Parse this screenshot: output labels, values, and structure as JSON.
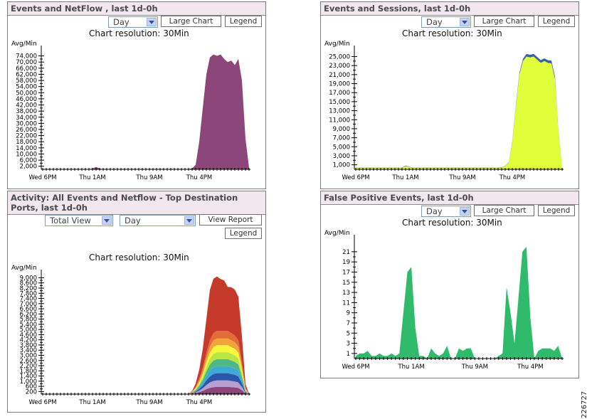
{
  "panels": {
    "netflow": {
      "title": "Events and NetFlow , last 1d-0h",
      "period_select": "Day",
      "large_chart_button": "Large Chart",
      "legend_button": "Legend",
      "resolution": "Chart resolution: 30Min",
      "unit": "Avg/Min"
    },
    "sessions": {
      "title": "Events and Sessions, last 1d-0h",
      "period_select": "Day",
      "large_chart_button": "Large Chart",
      "legend_button": "Legend",
      "resolution": "Chart resolution: 30Min",
      "unit": "Avg/Min"
    },
    "ports": {
      "title_line1": "Activity: All Events and Netflow - Top Destination",
      "title_line2": "Ports, last 1d-0h",
      "view_select": "Total View",
      "period_select": "Day",
      "view_report_button": "View Report",
      "legend_button": "Legend",
      "resolution": "Chart resolution: 30Min",
      "unit": "Avg/Min"
    },
    "false_positive": {
      "title": "False Positive Events, last 1d-0h",
      "period_select": "Day",
      "large_chart_button": "Large Chart",
      "legend_button": "Legend",
      "resolution": "Chart resolution: 30Min",
      "unit": "Avg/Min"
    }
  },
  "figure_id": "226727",
  "chart_data": [
    {
      "id": "netflow",
      "type": "area",
      "ylabel": "Avg/Min",
      "ylim": [
        0,
        78000
      ],
      "yticks": [
        2000,
        6000,
        10000,
        14000,
        18000,
        22000,
        26000,
        30000,
        34000,
        38000,
        42000,
        46000,
        50000,
        54000,
        58000,
        62000,
        66000,
        70000,
        74000
      ],
      "ytick_labels": [
        "2,000",
        "6,000",
        "10,000",
        "14,000",
        "18,000",
        "22,000",
        "26,000",
        "30,000",
        "34,000",
        "38,000",
        "42,000",
        "46,000",
        "50,000",
        "54,000",
        "58,000",
        "62,000",
        "66,000",
        "70,000",
        "74,000"
      ],
      "x_ticks": [
        {
          "label": "Wed 6PM",
          "index": 0
        },
        {
          "label": "Thu 1AM",
          "index": 14
        },
        {
          "label": "Thu 9AM",
          "index": 30
        },
        {
          "label": "Thu 4PM",
          "index": 44
        }
      ],
      "colors": [
        "#8c4679"
      ],
      "series": [
        {
          "values": [
            0,
            0,
            0,
            0,
            0,
            0,
            0,
            0,
            0,
            0,
            0,
            0,
            0,
            0,
            500,
            1500,
            500,
            0,
            0,
            0,
            0,
            0,
            0,
            0,
            0,
            0,
            0,
            0,
            0,
            0,
            0,
            0,
            0,
            0,
            0,
            0,
            0,
            0,
            0,
            0,
            0,
            200,
            500,
            3000,
            18000,
            40000,
            62000,
            73000,
            75000,
            74000,
            75000,
            72000,
            70000,
            71000,
            68000,
            72000,
            58000,
            20000,
            1000
          ]
        }
      ]
    },
    {
      "id": "sessions",
      "type": "area",
      "ylabel": "Avg/Min",
      "ylim": [
        0,
        26500
      ],
      "yticks": [
        1000,
        3000,
        5000,
        7000,
        9000,
        11000,
        13000,
        15000,
        17000,
        19000,
        21000,
        23000,
        25000
      ],
      "ytick_labels": [
        "1,000",
        "3,000",
        "5,000",
        "7,000",
        "9,000",
        "11,000",
        "13,000",
        "15,000",
        "17,000",
        "19,000",
        "21,000",
        "23,000",
        "25,000"
      ],
      "x_ticks": [
        {
          "label": "Wed 6PM",
          "index": 0
        },
        {
          "label": "Thu 1AM",
          "index": 14
        },
        {
          "label": "Thu 9AM",
          "index": 30
        },
        {
          "label": "Thu 4PM",
          "index": 44
        }
      ],
      "colors": [
        "#e0ff3a",
        "#3a62a8"
      ],
      "series": [
        {
          "values": [
            300,
            300,
            300,
            300,
            300,
            300,
            300,
            300,
            300,
            300,
            300,
            300,
            300,
            300,
            700,
            500,
            300,
            300,
            300,
            300,
            300,
            300,
            300,
            300,
            300,
            300,
            300,
            300,
            300,
            300,
            300,
            300,
            300,
            300,
            300,
            300,
            300,
            300,
            300,
            300,
            300,
            400,
            700,
            1500,
            6000,
            14000,
            21000,
            24000,
            25000,
            24800,
            25000,
            24300,
            23600,
            24000,
            23600,
            23500,
            20000,
            8000,
            500
          ]
        },
        {
          "values": [
            50,
            50,
            50,
            50,
            50,
            50,
            50,
            50,
            50,
            50,
            50,
            50,
            50,
            50,
            100,
            80,
            50,
            50,
            50,
            50,
            50,
            50,
            50,
            50,
            50,
            50,
            50,
            50,
            50,
            50,
            50,
            50,
            50,
            50,
            50,
            50,
            50,
            50,
            50,
            50,
            50,
            50,
            60,
            80,
            200,
            300,
            400,
            500,
            600,
            600,
            600,
            600,
            600,
            600,
            600,
            600,
            500,
            200,
            50
          ]
        }
      ]
    },
    {
      "id": "ports",
      "type": "area",
      "ylabel": "Avg/Min",
      "ylim": [
        0,
        9300
      ],
      "yticks": [
        200,
        600,
        1000,
        1400,
        1800,
        2200,
        2600,
        3000,
        3400,
        3800,
        4200,
        4600,
        5000,
        5400,
        5800,
        6200,
        6600,
        7000,
        7400,
        7800,
        8200,
        8600,
        9000
      ],
      "ytick_labels": [
        "200",
        "600",
        "1,000",
        "1,400",
        "1,800",
        "2,200",
        "2,600",
        "3,000",
        "3,400",
        "3,800",
        "4,200",
        "4,600",
        "5,000",
        "5,400",
        "5,800",
        "6,200",
        "6,600",
        "7,000",
        "7,400",
        "7,800",
        "8,200",
        "8,600",
        "9,000"
      ],
      "x_ticks": [
        {
          "label": "Wed 6PM",
          "index": 0
        },
        {
          "label": "Thu 1AM",
          "index": 14
        },
        {
          "label": "Thu 9AM",
          "index": 30
        },
        {
          "label": "Thu 4PM",
          "index": 44
        }
      ],
      "colors": [
        "#8c4679",
        "#b89ed1",
        "#2b55a8",
        "#3ea9d6",
        "#4fb784",
        "#b9e645",
        "#f6f63a",
        "#f0a43a",
        "#e26d3a",
        "#c63a2b"
      ],
      "series": [
        {
          "values": [
            0,
            0,
            0,
            0,
            0,
            0,
            0,
            0,
            0,
            0,
            0,
            0,
            0,
            0,
            0,
            0,
            0,
            0,
            0,
            0,
            0,
            0,
            0,
            0,
            0,
            0,
            0,
            0,
            0,
            0,
            0,
            0,
            0,
            0,
            0,
            0,
            0,
            0,
            0,
            0,
            0,
            0,
            30,
            80,
            150,
            250,
            380,
            480,
            540,
            560,
            560,
            560,
            560,
            540,
            520,
            480,
            300,
            60,
            0
          ]
        },
        {
          "values": [
            0,
            0,
            0,
            0,
            0,
            0,
            0,
            0,
            0,
            0,
            0,
            0,
            0,
            0,
            0,
            0,
            0,
            0,
            0,
            0,
            0,
            0,
            0,
            0,
            0,
            0,
            0,
            0,
            0,
            0,
            0,
            0,
            0,
            0,
            0,
            0,
            0,
            0,
            0,
            0,
            0,
            0,
            20,
            60,
            120,
            200,
            320,
            420,
            480,
            500,
            500,
            500,
            500,
            480,
            460,
            420,
            250,
            50,
            0
          ]
        },
        {
          "values": [
            0,
            0,
            0,
            0,
            0,
            0,
            0,
            0,
            0,
            0,
            0,
            0,
            0,
            0,
            0,
            0,
            0,
            0,
            0,
            0,
            0,
            0,
            0,
            0,
            0,
            0,
            0,
            0,
            0,
            0,
            0,
            0,
            0,
            0,
            0,
            0,
            0,
            0,
            0,
            0,
            0,
            0,
            20,
            60,
            130,
            220,
            360,
            470,
            540,
            560,
            560,
            560,
            560,
            540,
            520,
            470,
            280,
            50,
            0
          ]
        },
        {
          "values": [
            0,
            0,
            0,
            0,
            0,
            0,
            0,
            0,
            0,
            0,
            0,
            0,
            0,
            0,
            0,
            0,
            0,
            0,
            0,
            0,
            0,
            0,
            0,
            0,
            0,
            0,
            0,
            0,
            0,
            0,
            0,
            0,
            0,
            0,
            0,
            0,
            0,
            0,
            0,
            0,
            0,
            0,
            20,
            60,
            130,
            220,
            350,
            460,
            520,
            540,
            540,
            540,
            540,
            520,
            500,
            460,
            270,
            50,
            0
          ]
        },
        {
          "values": [
            0,
            0,
            0,
            0,
            0,
            0,
            0,
            0,
            0,
            0,
            0,
            0,
            0,
            0,
            0,
            0,
            0,
            0,
            0,
            0,
            0,
            0,
            0,
            0,
            0,
            0,
            0,
            0,
            0,
            0,
            0,
            0,
            0,
            0,
            0,
            0,
            0,
            0,
            0,
            0,
            0,
            0,
            20,
            60,
            130,
            220,
            350,
            460,
            520,
            540,
            540,
            540,
            540,
            520,
            500,
            460,
            270,
            50,
            0
          ]
        },
        {
          "values": [
            0,
            0,
            0,
            0,
            0,
            0,
            0,
            0,
            0,
            0,
            0,
            0,
            0,
            0,
            0,
            0,
            0,
            0,
            0,
            0,
            0,
            0,
            0,
            0,
            0,
            0,
            0,
            0,
            0,
            0,
            0,
            0,
            0,
            0,
            0,
            0,
            0,
            0,
            0,
            0,
            0,
            0,
            20,
            60,
            130,
            220,
            350,
            460,
            520,
            540,
            540,
            540,
            540,
            520,
            500,
            460,
            270,
            50,
            0
          ]
        },
        {
          "values": [
            0,
            0,
            0,
            0,
            0,
            0,
            0,
            0,
            0,
            0,
            0,
            0,
            0,
            0,
            0,
            0,
            0,
            0,
            0,
            0,
            0,
            0,
            0,
            0,
            0,
            0,
            0,
            0,
            0,
            0,
            0,
            0,
            0,
            0,
            0,
            0,
            0,
            0,
            0,
            0,
            0,
            0,
            20,
            60,
            130,
            220,
            350,
            460,
            520,
            540,
            540,
            540,
            540,
            520,
            500,
            460,
            270,
            50,
            0
          ]
        },
        {
          "values": [
            0,
            0,
            0,
            0,
            0,
            0,
            0,
            0,
            0,
            0,
            0,
            0,
            0,
            0,
            0,
            0,
            0,
            0,
            0,
            0,
            0,
            0,
            0,
            0,
            0,
            0,
            0,
            0,
            0,
            0,
            0,
            0,
            0,
            0,
            0,
            0,
            0,
            0,
            0,
            0,
            0,
            0,
            20,
            60,
            130,
            220,
            350,
            460,
            520,
            540,
            540,
            540,
            540,
            520,
            500,
            460,
            270,
            50,
            0
          ]
        },
        {
          "values": [
            0,
            0,
            0,
            0,
            0,
            0,
            0,
            0,
            0,
            0,
            0,
            0,
            0,
            0,
            0,
            0,
            0,
            0,
            0,
            0,
            0,
            0,
            0,
            0,
            0,
            0,
            0,
            0,
            0,
            0,
            0,
            0,
            0,
            0,
            0,
            0,
            0,
            0,
            0,
            0,
            0,
            0,
            20,
            70,
            140,
            240,
            380,
            500,
            560,
            580,
            580,
            580,
            580,
            560,
            540,
            500,
            300,
            60,
            0
          ]
        },
        {
          "values": [
            10,
            10,
            10,
            10,
            10,
            10,
            10,
            10,
            10,
            10,
            10,
            10,
            10,
            10,
            10,
            10,
            10,
            10,
            10,
            10,
            10,
            10,
            10,
            10,
            10,
            10,
            10,
            10,
            10,
            10,
            10,
            10,
            10,
            10,
            10,
            10,
            10,
            10,
            10,
            10,
            10,
            20,
            60,
            250,
            700,
            1500,
            2600,
            3900,
            4200,
            4200,
            4000,
            3900,
            3400,
            3550,
            3550,
            3350,
            2000,
            300,
            20
          ]
        }
      ]
    },
    {
      "id": "false_positive",
      "type": "area",
      "ylabel": "Avg/Min",
      "ylim": [
        0,
        23.5
      ],
      "yticks": [
        1,
        3,
        5,
        7,
        9,
        11,
        13,
        15,
        17,
        19,
        21
      ],
      "ytick_labels": [
        "1",
        "3",
        "5",
        "7",
        "9",
        "11",
        "13",
        "15",
        "17",
        "19",
        "21"
      ],
      "x_ticks": [
        {
          "label": "Wed 6PM",
          "index": 0
        },
        {
          "label": "Thu 1AM",
          "index": 14
        },
        {
          "label": "Thu 9AM",
          "index": 30
        },
        {
          "label": "Thu 4PM",
          "index": 44
        }
      ],
      "colors": [
        "#2fba6c"
      ],
      "series": [
        {
          "values": [
            0.5,
            1,
            1,
            1.5,
            0.5,
            0.5,
            1,
            0.5,
            0.5,
            1,
            0.5,
            1,
            9,
            17,
            18,
            6,
            0.5,
            0.5,
            0,
            2,
            1,
            0.5,
            1,
            2.5,
            0,
            0,
            2,
            1.5,
            2,
            2,
            0,
            0,
            0,
            0,
            0,
            0,
            0.5,
            1,
            14,
            9,
            3,
            12,
            21,
            22,
            8,
            0,
            1.5,
            2,
            2,
            2,
            1.5,
            2.5,
            0
          ]
        }
      ]
    }
  ]
}
